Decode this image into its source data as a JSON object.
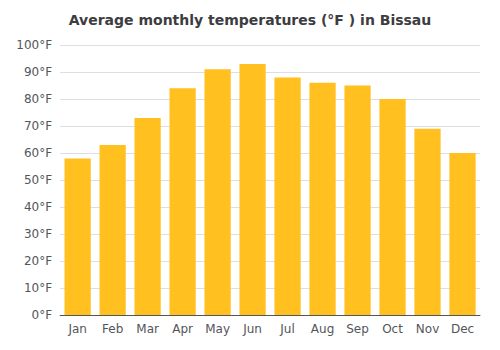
{
  "chart_data": {
    "type": "bar",
    "title": "Average monthly temperatures (°F ) in Bissau",
    "categories": [
      "Jan",
      "Feb",
      "Mar",
      "Apr",
      "May",
      "Jun",
      "Jul",
      "Aug",
      "Sep",
      "Oct",
      "Nov",
      "Dec"
    ],
    "values": [
      58,
      63,
      73,
      84,
      91,
      93,
      88,
      86,
      85,
      80,
      69,
      60
    ],
    "color": "#FFC020",
    "ylim": [
      0,
      100
    ],
    "yticks": [
      {
        "value": 0,
        "label": "0°F"
      },
      {
        "value": 10,
        "label": "10°F"
      },
      {
        "value": 20,
        "label": "20°F"
      },
      {
        "value": 30,
        "label": "30°F"
      },
      {
        "value": 40,
        "label": "40°F"
      },
      {
        "value": 50,
        "label": "50°F"
      },
      {
        "value": 60,
        "label": "60°F"
      },
      {
        "value": 70,
        "label": "70°F"
      },
      {
        "value": 80,
        "label": "80°F"
      },
      {
        "value": 90,
        "label": "90°F"
      },
      {
        "value": 100,
        "label": "100°F"
      }
    ],
    "grid": true
  }
}
